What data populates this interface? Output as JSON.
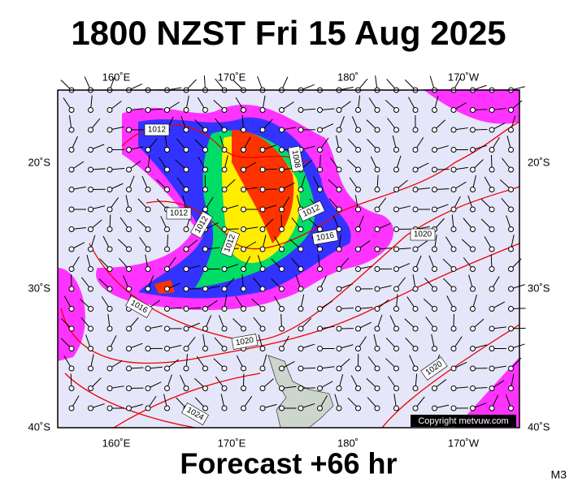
{
  "title": "1800 NZST Fri 15 Aug 2025",
  "footer": "Forecast +66 hr",
  "code": "M3",
  "copyright": "Copyright metvuw.com",
  "lon_labels": [
    "160˚E",
    "170˚E",
    "180˚",
    "170˚W"
  ],
  "lat_labels": [
    "20˚S",
    "30˚S",
    "40˚S"
  ],
  "isobar_labels": [
    "1012",
    "1008",
    "1012",
    "1012",
    "1012",
    "1012",
    "1016",
    "1020",
    "1016",
    "1020",
    "1020",
    "1024"
  ]
}
